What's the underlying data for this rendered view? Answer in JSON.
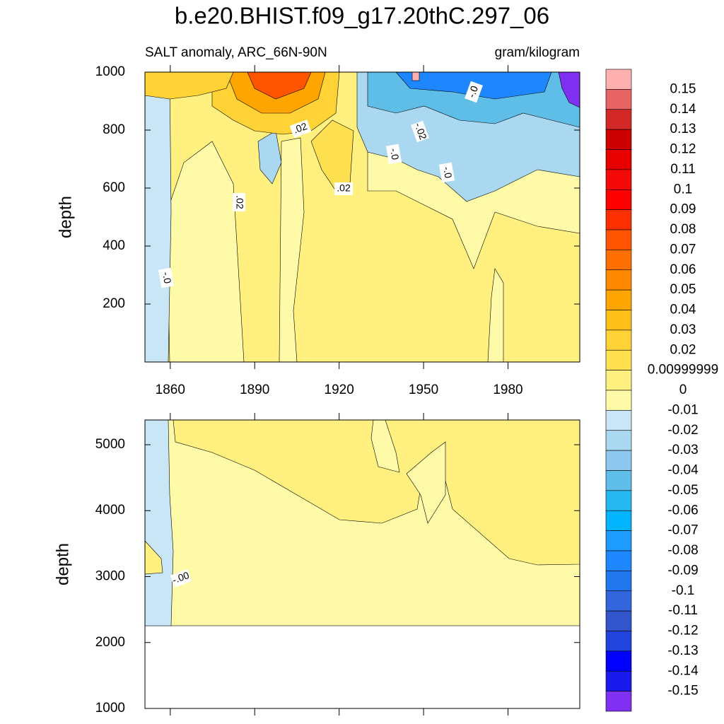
{
  "chart_data": [
    {
      "type": "contour",
      "title": "b.e20.BHIST.f09_g17.20thC.297_06",
      "subtitle": "SALT anomaly, ARC_66N-90N",
      "units": "gram/kilogram",
      "y_label": "depth",
      "xlim": [
        1851,
        2005.5
      ],
      "xticks": [
        1860,
        1890,
        1920,
        1950,
        1980
      ],
      "ylim": [
        0,
        1000
      ],
      "yticks": [
        200,
        400,
        600,
        800,
        1000
      ],
      "annotations": [
        ".02",
        "-.0",
        "-.02",
        "-.0",
        "-.0",
        ".02",
        ".02",
        "-.0"
      ],
      "colorbar": {
        "labels": [
          0.15,
          0.14,
          0.13,
          0.12,
          0.11,
          0.1,
          0.09,
          0.08,
          0.07,
          0.06,
          0.05,
          0.04,
          0.03,
          0.02,
          {
            "value": 0.01,
            "label": "0.00999999"
          },
          0,
          -0.01,
          -0.02,
          -0.03,
          -0.04,
          -0.05,
          -0.06,
          -0.07,
          -0.08,
          -0.09,
          -0.1,
          -0.11,
          -0.12,
          -0.13,
          -0.14,
          -0.15
        ],
        "colors": [
          "#ffb0b0",
          "#e86565",
          "#d22828",
          "#cc0000",
          "#e60000",
          "#f50a0a",
          "#ff0000",
          "#ff3000",
          "#ff5500",
          "#ff7000",
          "#ff8a00",
          "#ffa500",
          "#ffbf1a",
          "#ffd235",
          "#ffe050",
          "#fff080",
          "#fffaa8",
          "#c8e6f5",
          "#aad8f0",
          "#8ec8ee",
          "#5ebee8",
          "#28b8f0",
          "#00b4ff",
          "#1e9bff",
          "#1e87ff",
          "#2277ee",
          "#3366dd",
          "#3355cc",
          "#2244dd",
          "#0000ff",
          "#1a1aee",
          "#8030f0"
        ]
      }
    },
    {
      "type": "contour",
      "y_label": "depth",
      "ylim": [
        1000,
        5375
      ],
      "yticks": [
        1000,
        2000,
        3000,
        4000,
        5000
      ],
      "annotations": [
        "-.00"
      ]
    }
  ]
}
